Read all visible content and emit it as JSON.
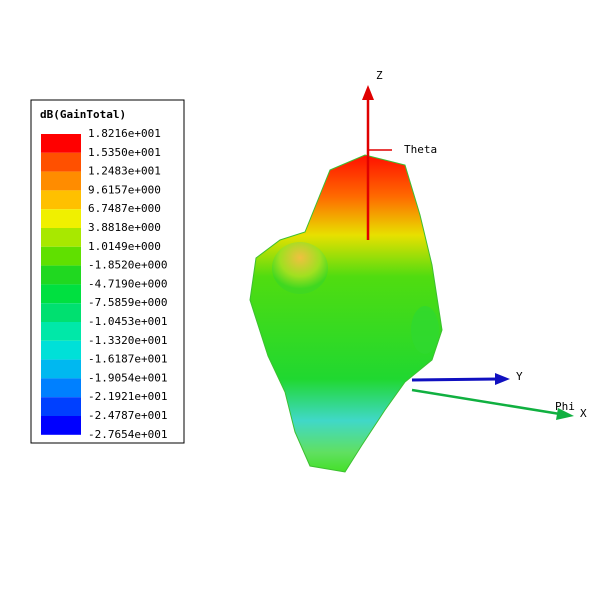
{
  "legend": {
    "title": "dB(GainTotal)",
    "labels": [
      "1.8216e+001",
      "1.5350e+001",
      "1.2483e+001",
      "9.6157e+000",
      "6.7487e+000",
      "3.8818e+000",
      "1.0149e+000",
      "-1.8520e+000",
      "-4.7190e+000",
      "-7.5859e+000",
      "-1.0453e+001",
      "-1.3320e+001",
      "-1.6187e+001",
      "-1.9054e+001",
      "-2.1921e+001",
      "-2.4787e+001",
      "-2.7654e+001"
    ],
    "colors": [
      "#ff0000",
      "#ff5000",
      "#ff8c00",
      "#ffc000",
      "#f0f000",
      "#a8e800",
      "#60e000",
      "#20d820",
      "#00e040",
      "#00e070",
      "#00e8a8",
      "#00e0d8",
      "#00b8f0",
      "#0080ff",
      "#0040ff",
      "#0000ff"
    ]
  },
  "axes": {
    "z": "Z",
    "theta": "Theta",
    "y": "Y",
    "phi": "Phi",
    "x": "X"
  }
}
